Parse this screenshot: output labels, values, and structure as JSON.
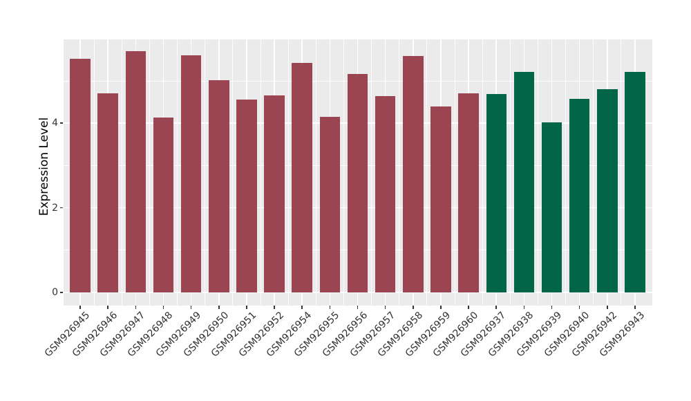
{
  "chart_data": {
    "type": "bar",
    "title": "",
    "xlabel": "",
    "ylabel": "Expression Level",
    "categories": [
      "GSM926945",
      "GSM926946",
      "GSM926947",
      "GSM926948",
      "GSM926949",
      "GSM926950",
      "GSM926951",
      "GSM926952",
      "GSM926954",
      "GSM926955",
      "GSM926956",
      "GSM926957",
      "GSM926958",
      "GSM926959",
      "GSM926960",
      "GSM926937",
      "GSM926938",
      "GSM926939",
      "GSM926940",
      "GSM926942",
      "GSM926943"
    ],
    "values": [
      5.52,
      4.71,
      5.71,
      4.13,
      5.6,
      5.02,
      4.56,
      4.66,
      5.43,
      4.15,
      5.16,
      4.64,
      5.59,
      4.39,
      4.71,
      4.69,
      5.21,
      4.02,
      4.57,
      4.8,
      5.21
    ],
    "groups": [
      "red",
      "red",
      "red",
      "red",
      "red",
      "red",
      "red",
      "red",
      "red",
      "red",
      "red",
      "red",
      "red",
      "red",
      "red",
      "green",
      "green",
      "green",
      "green",
      "green",
      "green"
    ],
    "group_colors": {
      "red": "#9B4452",
      "green": "#006647"
    },
    "yticks": [
      0,
      2,
      4
    ],
    "ylim": [
      -0.31,
      5.98
    ],
    "grid": true,
    "legend": "none",
    "panel_bg": "#EBEBEB",
    "grid_color": "#FFFFFF",
    "tick_text_color": "#333333"
  }
}
